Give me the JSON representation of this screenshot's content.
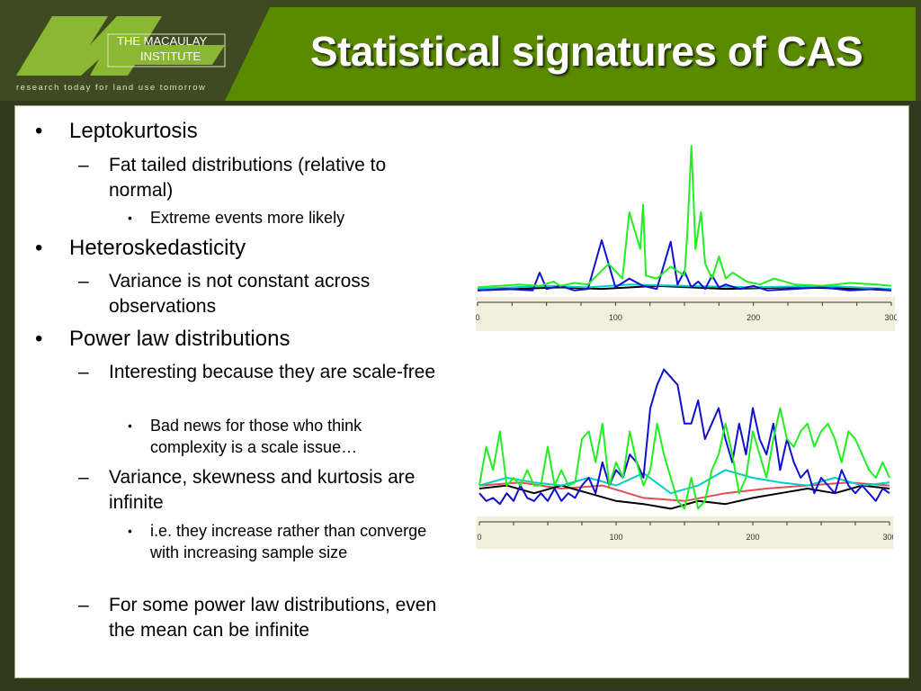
{
  "title": "Statistical signatures of CAS",
  "logo": {
    "line1": "THE MACAULAY",
    "line2": "INSTITUTE",
    "tagline": "research today for land use tomorrow"
  },
  "bullets": [
    {
      "marker": "•",
      "text": "Leptokurtosis"
    },
    {
      "marker": "–",
      "text": "Fat tailed distributions (relative to normal)"
    },
    {
      "marker": "•",
      "text": "Extreme events more likely"
    },
    {
      "marker": "•",
      "text": "Heteroskedasticity"
    },
    {
      "marker": "–",
      "text": "Variance is not constant across observations"
    },
    {
      "marker": "•",
      "text": "Power law distributions"
    },
    {
      "marker": "–",
      "text": "Interesting because they are scale-free"
    },
    {
      "marker": "•",
      "text": "Bad news for those who think complexity is a scale issue…"
    },
    {
      "marker": "–",
      "text": "Variance, skewness and kurtosis are infinite"
    },
    {
      "marker": "•",
      "text": "i.e. they increase rather than converge with increasing sample size"
    },
    {
      "marker": "–",
      "text": "For some power law distributions, even the mean can be infinite"
    }
  ],
  "chart_data": [
    {
      "type": "line",
      "xlim": [
        0,
        300
      ],
      "x_ticks": [
        "0",
        "100",
        "200",
        "300"
      ],
      "series": [
        {
          "color": "#22ee22",
          "x": [
            0,
            30,
            45,
            55,
            60,
            70,
            80,
            95,
            105,
            110,
            118,
            120,
            122,
            130,
            140,
            150,
            152,
            155,
            158,
            162,
            165,
            170,
            175,
            180,
            185,
            195,
            205,
            215,
            230,
            250,
            270,
            290,
            300
          ],
          "values": [
            0.04,
            0.06,
            0.05,
            0.08,
            0.05,
            0.07,
            0.06,
            0.2,
            0.1,
            0.55,
            0.3,
            0.6,
            0.12,
            0.1,
            0.18,
            0.12,
            0.4,
            1.0,
            0.3,
            0.55,
            0.2,
            0.1,
            0.25,
            0.1,
            0.14,
            0.08,
            0.06,
            0.1,
            0.06,
            0.05,
            0.07,
            0.06,
            0.05
          ]
        },
        {
          "color": "#1010d0",
          "x": [
            0,
            20,
            40,
            45,
            50,
            60,
            70,
            80,
            90,
            100,
            110,
            120,
            130,
            140,
            145,
            150,
            155,
            160,
            165,
            170,
            175,
            180,
            190,
            200,
            210,
            230,
            250,
            270,
            290,
            300
          ],
          "values": [
            0.02,
            0.03,
            0.02,
            0.14,
            0.03,
            0.05,
            0.02,
            0.03,
            0.36,
            0.04,
            0.1,
            0.05,
            0.03,
            0.35,
            0.06,
            0.15,
            0.04,
            0.08,
            0.03,
            0.12,
            0.04,
            0.06,
            0.03,
            0.05,
            0.02,
            0.03,
            0.04,
            0.02,
            0.03,
            0.02
          ]
        },
        {
          "color": "#00cccc",
          "x": [
            0,
            50,
            80,
            110,
            150,
            200,
            250,
            300
          ],
          "values": [
            0.03,
            0.05,
            0.04,
            0.06,
            0.05,
            0.04,
            0.05,
            0.03
          ]
        },
        {
          "color": "#000000",
          "x": [
            0,
            60,
            90,
            130,
            180,
            230,
            280,
            300
          ],
          "values": [
            0.02,
            0.04,
            0.03,
            0.05,
            0.03,
            0.04,
            0.03,
            0.02
          ]
        }
      ]
    },
    {
      "type": "line",
      "xlim": [
        0,
        300
      ],
      "x_ticks": [
        "0",
        "100",
        "200",
        "300"
      ],
      "series": [
        {
          "color": "#22ee22",
          "x": [
            0,
            5,
            10,
            15,
            20,
            25,
            30,
            35,
            40,
            45,
            50,
            55,
            60,
            65,
            70,
            75,
            80,
            85,
            90,
            95,
            100,
            105,
            110,
            115,
            120,
            125,
            130,
            135,
            140,
            145,
            150,
            155,
            160,
            165,
            170,
            175,
            180,
            185,
            190,
            195,
            200,
            205,
            210,
            215,
            220,
            225,
            230,
            235,
            240,
            245,
            250,
            255,
            260,
            265,
            270,
            275,
            280,
            285,
            290,
            295,
            300
          ],
          "values": [
            0.2,
            0.45,
            0.3,
            0.55,
            0.2,
            0.25,
            0.2,
            0.3,
            0.2,
            0.2,
            0.45,
            0.2,
            0.3,
            0.2,
            0.22,
            0.5,
            0.55,
            0.35,
            0.6,
            0.2,
            0.35,
            0.25,
            0.55,
            0.35,
            0.2,
            0.3,
            0.6,
            0.4,
            0.25,
            0.1,
            0.05,
            0.25,
            0.05,
            0.1,
            0.3,
            0.4,
            0.6,
            0.4,
            0.15,
            0.25,
            0.55,
            0.4,
            0.25,
            0.5,
            0.7,
            0.5,
            0.45,
            0.55,
            0.6,
            0.45,
            0.55,
            0.6,
            0.5,
            0.35,
            0.55,
            0.5,
            0.4,
            0.3,
            0.25,
            0.35,
            0.25
          ]
        },
        {
          "color": "#1010d0",
          "x": [
            0,
            5,
            10,
            15,
            20,
            25,
            30,
            35,
            40,
            45,
            50,
            55,
            60,
            65,
            70,
            75,
            80,
            85,
            90,
            95,
            100,
            105,
            110,
            115,
            120,
            125,
            130,
            135,
            140,
            145,
            150,
            155,
            160,
            165,
            170,
            175,
            180,
            185,
            190,
            195,
            200,
            205,
            210,
            215,
            220,
            225,
            230,
            235,
            240,
            245,
            250,
            255,
            260,
            265,
            270,
            275,
            280,
            285,
            290,
            295,
            300
          ],
          "values": [
            0.15,
            0.1,
            0.12,
            0.08,
            0.15,
            0.1,
            0.2,
            0.12,
            0.1,
            0.15,
            0.1,
            0.18,
            0.1,
            0.15,
            0.12,
            0.2,
            0.25,
            0.15,
            0.35,
            0.2,
            0.3,
            0.25,
            0.4,
            0.35,
            0.25,
            0.7,
            0.85,
            0.95,
            0.9,
            0.85,
            0.6,
            0.6,
            0.75,
            0.5,
            0.6,
            0.7,
            0.5,
            0.35,
            0.6,
            0.4,
            0.7,
            0.5,
            0.4,
            0.6,
            0.3,
            0.5,
            0.35,
            0.25,
            0.3,
            0.15,
            0.25,
            0.2,
            0.15,
            0.3,
            0.2,
            0.15,
            0.2,
            0.15,
            0.1,
            0.18,
            0.15
          ]
        },
        {
          "color": "#00cccc",
          "x": [
            0,
            20,
            40,
            60,
            80,
            100,
            120,
            140,
            160,
            180,
            200,
            220,
            240,
            260,
            280,
            300
          ],
          "values": [
            0.2,
            0.25,
            0.22,
            0.2,
            0.25,
            0.2,
            0.28,
            0.15,
            0.2,
            0.3,
            0.25,
            0.22,
            0.2,
            0.25,
            0.2,
            0.22
          ]
        },
        {
          "color": "#000000",
          "x": [
            0,
            20,
            40,
            60,
            80,
            100,
            120,
            140,
            160,
            180,
            200,
            220,
            240,
            260,
            280,
            300
          ],
          "values": [
            0.18,
            0.2,
            0.15,
            0.2,
            0.15,
            0.1,
            0.08,
            0.05,
            0.1,
            0.08,
            0.12,
            0.15,
            0.18,
            0.15,
            0.2,
            0.18
          ]
        },
        {
          "color": "#e05050",
          "x": [
            0,
            30,
            60,
            90,
            120,
            150,
            180,
            210,
            240,
            270,
            300
          ],
          "values": [
            0.2,
            0.22,
            0.18,
            0.2,
            0.12,
            0.1,
            0.15,
            0.18,
            0.2,
            0.22,
            0.2
          ]
        }
      ]
    }
  ]
}
